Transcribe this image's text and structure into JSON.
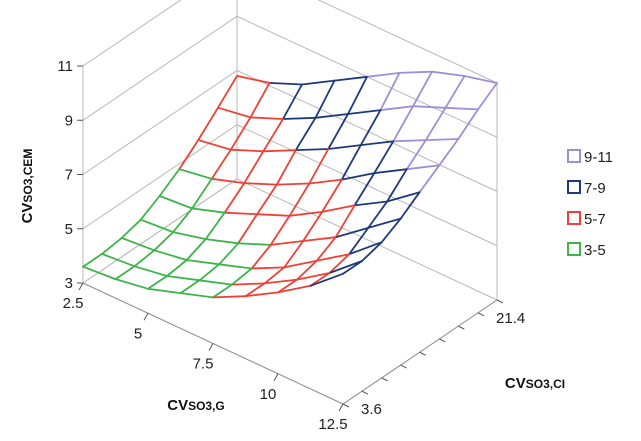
{
  "chart_data": {
    "type": "surface",
    "title": "",
    "zlabel": {
      "prefix": "CV",
      "sub": "SO3,CEM"
    },
    "xlabel": {
      "prefix": "CV",
      "sub": "SO3,G"
    },
    "ylabel": {
      "prefix": "CV",
      "sub": "SO3,CI"
    },
    "zlim": [
      3,
      11
    ],
    "z_ticks": [
      "3",
      "5",
      "7",
      "9",
      "11"
    ],
    "x_ticks": [
      "2.5",
      "5",
      "7.5",
      "10",
      "12.5"
    ],
    "y_ticks": [
      "3.6",
      "21.4"
    ],
    "x_grid": [
      2.5,
      3.75,
      5,
      6.25,
      7.5,
      8.75,
      10,
      11.25,
      12.5
    ],
    "y_grid": [
      3.6,
      6.1,
      8.7,
      11.2,
      13.7,
      16.3,
      18.8,
      21.4,
      23.9
    ],
    "z": [
      [
        3.6,
        3.7,
        3.9,
        4.3,
        4.7,
        5.3,
        6.0,
        6.8,
        7.8
      ],
      [
        3.6,
        3.7,
        3.9,
        4.3,
        4.7,
        5.3,
        6.0,
        6.8,
        7.8
      ],
      [
        3.7,
        3.8,
        4.0,
        4.4,
        4.8,
        5.4,
        6.2,
        7.0,
        8.0
      ],
      [
        3.9,
        4.0,
        4.3,
        4.7,
        5.2,
        5.9,
        6.6,
        7.5,
        8.4
      ],
      [
        4.3,
        4.4,
        4.8,
        5.3,
        5.8,
        6.5,
        7.3,
        8.0,
        8.9
      ],
      [
        4.8,
        5.0,
        5.4,
        5.9,
        6.5,
        7.2,
        8.0,
        8.7,
        9.4
      ],
      [
        5.4,
        5.6,
        6.1,
        6.7,
        7.3,
        8.0,
        8.7,
        9.3,
        9.9
      ],
      [
        6.1,
        6.3,
        6.8,
        7.4,
        8.1,
        8.8,
        9.5,
        10.0,
        10.5
      ],
      [
        6.8,
        7.1,
        7.6,
        8.3,
        9.0,
        9.7,
        10.3,
        10.7,
        11.0
      ]
    ],
    "bands": [
      {
        "name": "9-11",
        "min": 9,
        "max": 11,
        "color": "#9f8fd6"
      },
      {
        "name": "7-9",
        "min": 7,
        "max": 9,
        "color": "#1f3a7a"
      },
      {
        "name": "5-7",
        "min": 5,
        "max": 7,
        "color": "#ef4136"
      },
      {
        "name": "3-5",
        "min": 3,
        "max": 5,
        "color": "#3cb54a"
      }
    ],
    "grid": true,
    "legend_position": "right"
  }
}
